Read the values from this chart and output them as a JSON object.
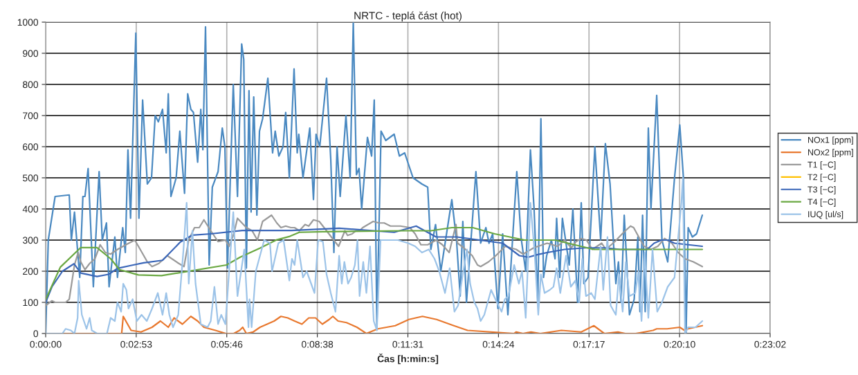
{
  "chart_data": {
    "type": "line",
    "title": "NRTC - teplá část (hot)",
    "xlabel": "Čas [h:min:s]",
    "xlim": [
      0,
      1382.4
    ],
    "xticks": [
      {
        "value": 0,
        "label": "0:00:00"
      },
      {
        "value": 172.8,
        "label": "0:02:53"
      },
      {
        "value": 345.6,
        "label": "0:05:46"
      },
      {
        "value": 518.4,
        "label": "0:08:38"
      },
      {
        "value": 691.2,
        "label": "0:11:31"
      },
      {
        "value": 864,
        "label": "0:14:24"
      },
      {
        "value": 1036.8,
        "label": "0:17:17"
      },
      {
        "value": 1209.6,
        "label": "0:20:10"
      },
      {
        "value": 1382.4,
        "label": "0:23:02"
      }
    ],
    "ylim": [
      0,
      1000
    ],
    "yticks": [
      0,
      100,
      200,
      300,
      400,
      500,
      600,
      700,
      800,
      900,
      1000
    ],
    "grid": true,
    "legend": "right",
    "series": [
      {
        "name": "NOx1 [ppm]",
        "color": "#4a89c1",
        "x": [
          0,
          5,
          18,
          45,
          49,
          55,
          65,
          71,
          75,
          81,
          91,
          102,
          108,
          116,
          121,
          132,
          137,
          147,
          152,
          157,
          162,
          172,
          178,
          185,
          194,
          202,
          209,
          215,
          223,
          230,
          234,
          239,
          249,
          256,
          265,
          271,
          277,
          282,
          290,
          296,
          300,
          305,
          312,
          318,
          329,
          337,
          342,
          347,
          358,
          366,
          374,
          378,
          383,
          388,
          392,
          397,
          403,
          408,
          414,
          424,
          433,
          438,
          445,
          453,
          458,
          465,
          474,
          480,
          483,
          491,
          504,
          511,
          516,
          523,
          536,
          544,
          550,
          556,
          562,
          573,
          581,
          587,
          593,
          598,
          603,
          614,
          622,
          627,
          632,
          640,
          649,
          665,
          675,
          685,
          701,
          718,
          729,
          735,
          744,
          754,
          764,
          775,
          784,
          791,
          796,
          803,
          821,
          830,
          840,
          846,
          853,
          863,
          872,
          882,
          899,
          907,
          916,
          925,
          932,
          939,
          945,
          950,
          956,
          965,
          972,
          975,
          981,
          986,
          999,
          1006,
          1015,
          1022,
          1027,
          1035,
          1048,
          1059,
          1068,
          1077,
          1088,
          1093,
          1098,
          1104,
          1114,
          1123,
          1130,
          1134,
          1139,
          1144,
          1150,
          1155,
          1166,
          1176,
          1187,
          1200,
          1210,
          1217,
          1222,
          1226,
          1234,
          1242,
          1253
        ],
        "values": [
          0,
          300,
          440,
          445,
          300,
          390,
          180,
          440,
          440,
          530,
          150,
          520,
          300,
          355,
          150,
          310,
          180,
          340,
          260,
          590,
          370,
          965,
          370,
          750,
          480,
          500,
          700,
          680,
          720,
          580,
          770,
          440,
          500,
          650,
          450,
          770,
          720,
          710,
          550,
          720,
          590,
          985,
          220,
          470,
          520,
          660,
          600,
          210,
          800,
          440,
          930,
          880,
          210,
          780,
          390,
          760,
          380,
          650,
          690,
          820,
          580,
          650,
          570,
          600,
          710,
          500,
          850,
          580,
          640,
          500,
          660,
          430,
          640,
          600,
          820,
          560,
          260,
          600,
          440,
          700,
          500,
          1000,
          510,
          530,
          400,
          630,
          570,
          750,
          20,
          650,
          620,
          640,
          570,
          580,
          500,
          480,
          470,
          270,
          350,
          200,
          310,
          430,
          300,
          120,
          360,
          100,
          520,
          290,
          340,
          290,
          320,
          80,
          320,
          60,
          520,
          310,
          200,
          590,
          400,
          100,
          690,
          180,
          250,
          300,
          240,
          370,
          180,
          370,
          220,
          400,
          100,
          420,
          160,
          180,
          600,
          300,
          610,
          480,
          160,
          230,
          100,
          380,
          60,
          110,
          310,
          70,
          380,
          70,
          660,
          400,
          765,
          300,
          230,
          500,
          670,
          500,
          0,
          340,
          310,
          320,
          380
        ]
      },
      {
        "name": "NOx2 [ppm]",
        "color": "#e8782e",
        "x": [
          0,
          144,
          145,
          148,
          163,
          182,
          203,
          219,
          234,
          245,
          261,
          277,
          290,
          302,
          324,
          344,
          359,
          370,
          376,
          383,
          396,
          409,
          436,
          449,
          462,
          475,
          489,
          502,
          515,
          528,
          541,
          548,
          558,
          574,
          594,
          612,
          634,
          667,
          693,
          719,
          746,
          779,
          805,
          894,
          898,
          911,
          926,
          944,
          984,
          1022,
          1046,
          1066,
          1092,
          1106,
          1126,
          1159,
          1166,
          1186,
          1210,
          1219,
          1226,
          1253
        ],
        "values": [
          0,
          0,
          0,
          55,
          10,
          5,
          20,
          40,
          20,
          50,
          30,
          55,
          40,
          20,
          10,
          0,
          0,
          10,
          20,
          0,
          5,
          20,
          40,
          55,
          50,
          40,
          30,
          50,
          50,
          30,
          45,
          55,
          40,
          35,
          20,
          0,
          15,
          25,
          45,
          55,
          45,
          25,
          10,
          0,
          5,
          0,
          5,
          0,
          10,
          5,
          25,
          0,
          5,
          0,
          0,
          10,
          15,
          15,
          20,
          10,
          15,
          25
        ]
      },
      {
        "name": "T1 [−C]",
        "color": "#9a9a9a",
        "x": [
          0,
          12,
          18,
          38,
          45,
          55,
          62,
          67,
          75,
          84,
          94,
          104,
          114,
          124,
          137,
          153,
          170,
          177,
          194,
          203,
          216,
          232,
          254,
          264,
          273,
          284,
          293,
          302,
          315,
          329,
          343,
          350,
          359,
          366,
          383,
          394,
          404,
          414,
          431,
          441,
          449,
          458,
          468,
          475,
          484,
          495,
          502,
          511,
          522,
          536,
          545,
          559,
          571,
          576,
          585,
          592,
          599,
          605,
          625,
          636,
          646,
          658,
          677,
          695,
          705,
          716,
          729,
          745,
          757,
          770,
          783,
          786,
          798,
          814,
          824,
          830,
          845,
          859,
          877,
          898,
          911,
          931,
          957,
          977,
          990,
          1003,
          1012,
          1022,
          1032,
          1043,
          1061,
          1069,
          1086,
          1103,
          1116,
          1122,
          1135,
          1142,
          1155,
          1168,
          1181,
          1195,
          1207,
          1220,
          1236,
          1253
        ],
        "values": [
          90,
          105,
          100,
          100,
          110,
          220,
          260,
          230,
          205,
          225,
          240,
          285,
          260,
          255,
          270,
          285,
          300,
          280,
          230,
          215,
          225,
          250,
          225,
          215,
          300,
          340,
          340,
          365,
          330,
          295,
          300,
          280,
          320,
          370,
          340,
          330,
          300,
          360,
          380,
          355,
          340,
          345,
          340,
          340,
          330,
          350,
          345,
          365,
          360,
          330,
          310,
          280,
          330,
          315,
          320,
          330,
          330,
          340,
          360,
          355,
          355,
          345,
          345,
          340,
          320,
          285,
          285,
          300,
          285,
          260,
          350,
          290,
          275,
          250,
          220,
          215,
          230,
          250,
          280,
          270,
          255,
          275,
          290,
          280,
          300,
          275,
          295,
          305,
          300,
          270,
          290,
          270,
          295,
          325,
          345,
          340,
          300,
          280,
          270,
          280,
          305,
          290,
          260,
          240,
          230,
          215
        ]
      },
      {
        "name": "T2 [−C]",
        "color": "#ffc000"
      },
      {
        "name": "T3 [−C]",
        "color": "#3a66b8",
        "x": [
          0,
          12,
          32,
          54,
          67,
          98,
          120,
          137,
          167,
          187,
          223,
          257,
          280,
          315,
          375,
          469,
          560,
          665,
          707,
          745,
          785,
          872,
          904,
          921,
          938,
          957,
          990,
          1029,
          1069,
          1096,
          1148,
          1161,
          1175,
          1187,
          1200,
          1253
        ],
        "values": [
          100,
          150,
          200,
          224,
          194,
          183,
          190,
          209,
          220,
          227,
          235,
          294,
          316,
          320,
          331,
          331,
          338,
          325,
          345,
          310,
          310,
          290,
          250,
          245,
          253,
          260,
          270,
          275,
          275,
          270,
          270,
          290,
          300,
          300,
          290,
          280
        ]
      },
      {
        "name": "T4 [−C]",
        "color": "#6aa842",
        "x": [
          0,
          28,
          67,
          98,
          124,
          141,
          177,
          221,
          266,
          345,
          371,
          410,
          441,
          466,
          484,
          529,
          687,
          735,
          775,
          815,
          857,
          914,
          935,
          972,
          1046,
          1192,
          1253
        ],
        "values": [
          109,
          213,
          276,
          276,
          240,
          205,
          188,
          186,
          198,
          220,
          245,
          275,
          301,
          312,
          325,
          327,
          330,
          330,
          340,
          340,
          320,
          300,
          300,
          300,
          270,
          270,
          270
        ]
      },
      {
        "name": "IUQ [ul/s]",
        "color": "#9cc3e8",
        "x": [
          0,
          32,
          38,
          48,
          55,
          61,
          63,
          69,
          78,
          84,
          88,
          98,
          117,
          124,
          132,
          137,
          144,
          148,
          154,
          158,
          166,
          174,
          183,
          193,
          203,
          214,
          223,
          230,
          236,
          243,
          253,
          263,
          269,
          273,
          280,
          286,
          296,
          309,
          315,
          322,
          329,
          335,
          343,
          358,
          366,
          379,
          387,
          389,
          393,
          401,
          417,
          428,
          432,
          444,
          454,
          465,
          470,
          475,
          480,
          491,
          498,
          513,
          520,
          529,
          536,
          544,
          553,
          560,
          565,
          570,
          577,
          583,
          590,
          595,
          599,
          606,
          612,
          619,
          626,
          632,
          639,
          652,
          672,
          692,
          705,
          718,
          731,
          742,
          751,
          762,
          771,
          780,
          787,
          795,
          804,
          810,
          818,
          824,
          830,
          837,
          850,
          861,
          870,
          876,
          883,
          894,
          903,
          909,
          916,
          925,
          933,
          940,
          945,
          952,
          962,
          969,
          975,
          982,
          993,
          1002,
          1011,
          1018,
          1024,
          1031,
          1041,
          1048,
          1059,
          1064,
          1072,
          1078,
          1088,
          1094,
          1101,
          1107,
          1114,
          1125,
          1131,
          1137,
          1143,
          1150,
          1158,
          1167,
          1176,
          1187,
          1200,
          1213,
          1216,
          1220,
          1226,
          1240,
          1253
        ],
        "values": [
          0,
          0,
          15,
          10,
          0,
          50,
          170,
          60,
          15,
          50,
          10,
          0,
          0,
          50,
          40,
          100,
          70,
          160,
          140,
          80,
          110,
          40,
          60,
          40,
          80,
          130,
          60,
          130,
          60,
          20,
          60,
          270,
          420,
          160,
          330,
          160,
          30,
          20,
          40,
          150,
          30,
          60,
          30,
          390,
          120,
          270,
          20,
          110,
          20,
          200,
          300,
          290,
          200,
          290,
          300,
          170,
          240,
          220,
          300,
          180,
          200,
          130,
          300,
          295,
          190,
          130,
          70,
          250,
          160,
          230,
          160,
          180,
          220,
          300,
          120,
          230,
          130,
          280,
          40,
          10,
          300,
          300,
          300,
          290,
          280,
          260,
          270,
          240,
          200,
          130,
          210,
          70,
          90,
          180,
          270,
          160,
          100,
          80,
          40,
          60,
          140,
          100,
          70,
          110,
          120,
          220,
          160,
          200,
          50,
          420,
          260,
          60,
          190,
          130,
          140,
          150,
          210,
          130,
          250,
          150,
          170,
          100,
          240,
          120,
          130,
          110,
          280,
          140,
          310,
          90,
          60,
          190,
          70,
          230,
          120,
          130,
          200,
          40,
          260,
          50,
          270,
          70,
          100,
          150,
          180,
          420,
          500,
          0,
          20,
          20,
          40
        ]
      }
    ]
  }
}
